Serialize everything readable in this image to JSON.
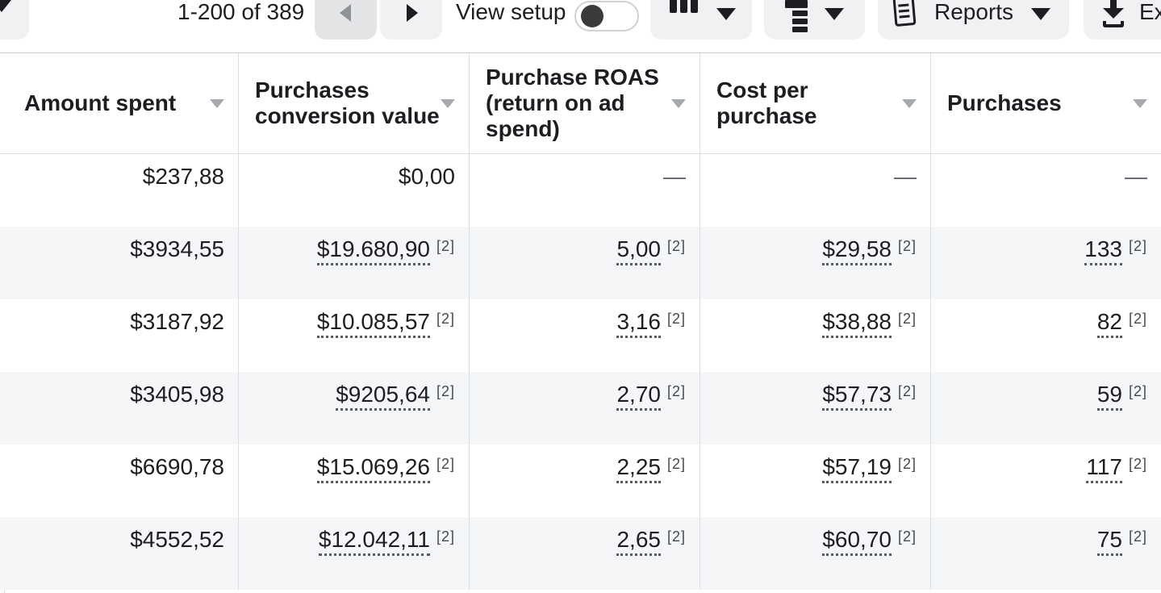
{
  "toolbar": {
    "hidden_dropdown": {
      "icon": "chevron-down-icon"
    },
    "pagination": {
      "range_label": "1-200 of 389",
      "prev_icon": "chevron-left-icon",
      "next_icon": "chevron-right-icon"
    },
    "view_setup": {
      "label": "View setup",
      "toggle_state": "off"
    },
    "columns_button": {
      "icon": "columns-icon",
      "caret_icon": "chevron-down-icon"
    },
    "breakdown_button": {
      "icon": "breakdown-icon",
      "caret_icon": "chevron-down-icon"
    },
    "reports_button": {
      "label": "Reports",
      "icon": "report-icon",
      "caret_icon": "chevron-down-icon"
    },
    "export_button": {
      "label": "Ex",
      "icon": "download-icon"
    }
  },
  "table": {
    "columns": [
      {
        "label": "Amount spent",
        "sort_icon": "sort-caret-icon"
      },
      {
        "label": "Purchases conversion value",
        "sort_icon": "sort-caret-icon"
      },
      {
        "label": "Purchase ROAS (return on ad spend)",
        "sort_icon": "sort-caret-icon"
      },
      {
        "label": "Cost per purchase",
        "sort_icon": "sort-caret-icon"
      },
      {
        "label": "Purchases",
        "sort_icon": "sort-caret-icon"
      }
    ],
    "rows": [
      {
        "zebra": false,
        "cells": [
          {
            "value": "$237,88"
          },
          {
            "value": "$0,00"
          },
          {
            "value": "—",
            "muted": true
          },
          {
            "value": "—",
            "muted": true
          },
          {
            "value": "—",
            "muted": true
          }
        ]
      },
      {
        "zebra": true,
        "cells": [
          {
            "value": "$3934,55"
          },
          {
            "value": "$19.680,90",
            "footnote": "[2]",
            "underline": true
          },
          {
            "value": "5,00",
            "footnote": "[2]",
            "underline": true
          },
          {
            "value": "$29,58",
            "footnote": "[2]",
            "underline": true
          },
          {
            "value": "133",
            "footnote": "[2]",
            "underline": true
          }
        ]
      },
      {
        "zebra": false,
        "cells": [
          {
            "value": "$3187,92"
          },
          {
            "value": "$10.085,57",
            "footnote": "[2]",
            "underline": true
          },
          {
            "value": "3,16",
            "footnote": "[2]",
            "underline": true
          },
          {
            "value": "$38,88",
            "footnote": "[2]",
            "underline": true
          },
          {
            "value": "82",
            "footnote": "[2]",
            "underline": true
          }
        ]
      },
      {
        "zebra": true,
        "cells": [
          {
            "value": "$3405,98"
          },
          {
            "value": "$9205,64",
            "footnote": "[2]",
            "underline": true
          },
          {
            "value": "2,70",
            "footnote": "[2]",
            "underline": true
          },
          {
            "value": "$57,73",
            "footnote": "[2]",
            "underline": true
          },
          {
            "value": "59",
            "footnote": "[2]",
            "underline": true
          }
        ]
      },
      {
        "zebra": false,
        "cells": [
          {
            "value": "$6690,78"
          },
          {
            "value": "$15.069,26",
            "footnote": "[2]",
            "underline": true
          },
          {
            "value": "2,25",
            "footnote": "[2]",
            "underline": true
          },
          {
            "value": "$57,19",
            "footnote": "[2]",
            "underline": true
          },
          {
            "value": "117",
            "footnote": "[2]",
            "underline": true
          }
        ]
      },
      {
        "zebra": true,
        "cells": [
          {
            "value": "$4552,52"
          },
          {
            "value": "$12.042,11",
            "footnote": "[2]",
            "underline": true
          },
          {
            "value": "2,65",
            "footnote": "[2]",
            "underline": true
          },
          {
            "value": "$60,70",
            "footnote": "[2]",
            "underline": true
          },
          {
            "value": "75",
            "footnote": "[2]",
            "underline": true
          }
        ]
      }
    ]
  },
  "colors": {
    "text": "#1C1E21",
    "muted_text": "#606770",
    "button_bg": "#F0F1F2",
    "button_bg_active": "#E3E4E6",
    "zebra_row_bg": "#F5F6F7",
    "table_border": "#DADDE1",
    "toggle_knob": "#3A3B3C"
  }
}
